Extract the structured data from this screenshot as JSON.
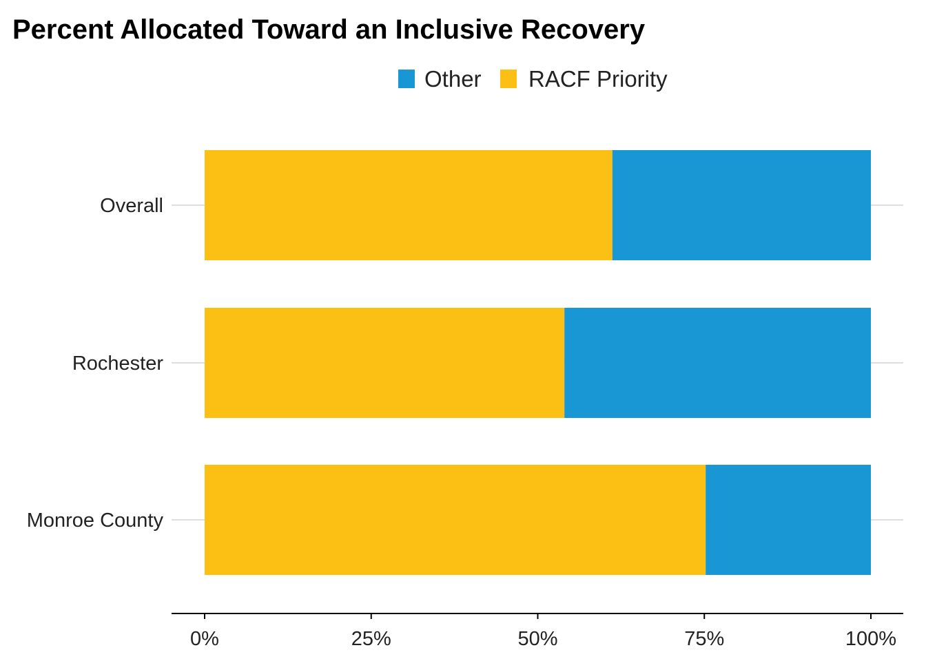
{
  "chart_data": {
    "type": "bar",
    "orientation": "horizontal",
    "stacked": true,
    "title": "Percent Allocated Toward an Inclusive Recovery",
    "categories": [
      "Overall",
      "Rochester",
      "Monroe County"
    ],
    "series": [
      {
        "name": "RACF Priority",
        "color": "#FCBF14",
        "values": [
          61.2,
          54.0,
          75.2
        ]
      },
      {
        "name": "Other",
        "color": "#1997D4",
        "values": [
          38.8,
          46.0,
          24.8
        ]
      }
    ],
    "legend": {
      "position": "top",
      "order": [
        "Other",
        "RACF Priority"
      ]
    },
    "x_ticks": [
      "0%",
      "25%",
      "50%",
      "75%",
      "100%"
    ],
    "x_tick_values": [
      0,
      25,
      50,
      75,
      100
    ],
    "xlim": [
      0,
      100
    ],
    "xlabel": "",
    "ylabel": "",
    "grid": "horizontal-major-only"
  }
}
